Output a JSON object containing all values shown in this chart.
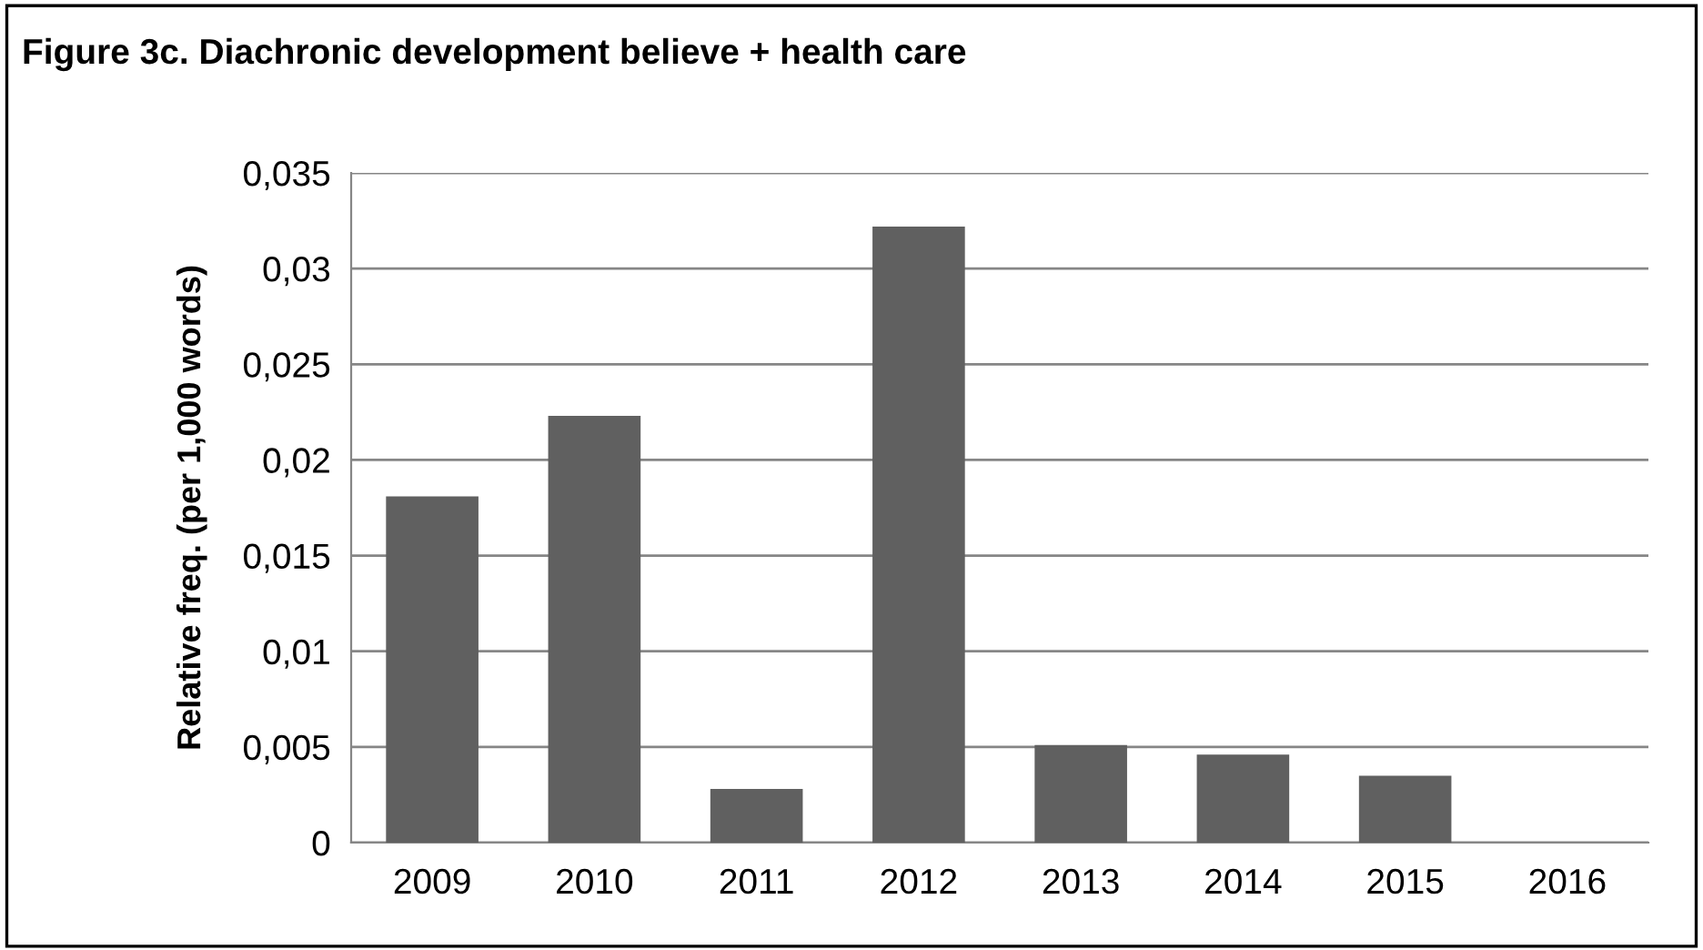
{
  "chart_data": {
    "type": "bar",
    "title": "Figure 3c. Diachronic development believe + health care",
    "ylabel": "Relative freq. (per 1,000 words)",
    "categories": [
      "2009",
      "2010",
      "2011",
      "2012",
      "2013",
      "2014",
      "2015",
      "2016"
    ],
    "values": [
      0.0181,
      0.0223,
      0.0028,
      0.0322,
      0.0051,
      0.0046,
      0.0035,
      0
    ],
    "color": "#606060",
    "ylim": [
      0,
      0.035
    ],
    "yticks": [
      0,
      {
        "value": 0.005,
        "label": "0,005"
      },
      {
        "value": 0.01,
        "label": "0,01"
      },
      {
        "value": 0.015,
        "label": "0,015"
      },
      {
        "value": 0.02,
        "label": "0,02"
      },
      {
        "value": 0.025,
        "label": "0,025"
      },
      {
        "value": 0.03,
        "label": "0,03"
      },
      {
        "value": 0.035,
        "label": "0,035"
      }
    ],
    "grid": "y",
    "legend": false
  }
}
